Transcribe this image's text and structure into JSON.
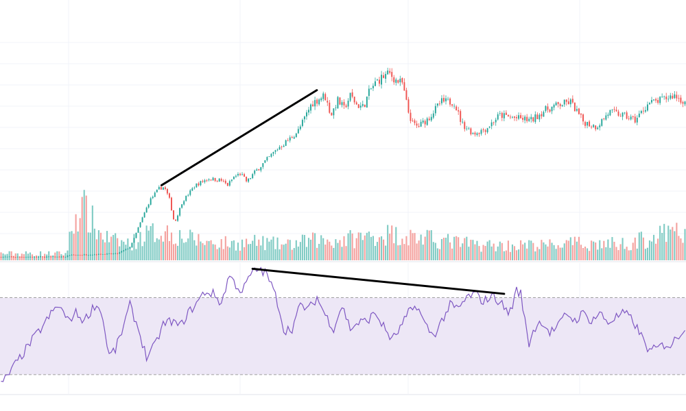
{
  "colors": {
    "up": "#26a69a",
    "down": "#ef5350",
    "volume_up": "#80cbc4",
    "volume_down": "#f4a29f",
    "rsi_line": "#7e57c2",
    "rsi_band": "#ede7f6",
    "rsi_band_border": "#9e9e9e",
    "grid": "#f0f3fa",
    "trendline": "#000000",
    "background": "#ffffff"
  },
  "chart_data": [
    {
      "type": "candlestick",
      "title": "",
      "xlabel": "",
      "ylabel": "",
      "grid": true,
      "axis_labels_visible": false,
      "bar_count": 330,
      "price_anchors": [
        [
          0,
          2
        ],
        [
          50,
          2
        ],
        [
          52,
          3
        ],
        [
          90,
          4
        ],
        [
          100,
          8
        ],
        [
          110,
          27
        ],
        [
          115,
          36
        ],
        [
          122,
          43
        ],
        [
          126,
          44
        ],
        [
          130,
          37
        ],
        [
          134,
          22
        ],
        [
          140,
          35
        ],
        [
          150,
          45
        ],
        [
          160,
          49
        ],
        [
          170,
          48
        ],
        [
          175,
          45
        ],
        [
          180,
          50
        ],
        [
          185,
          52
        ],
        [
          190,
          47
        ],
        [
          195,
          52
        ],
        [
          200,
          56
        ],
        [
          205,
          60
        ],
        [
          210,
          64
        ],
        [
          215,
          68
        ],
        [
          222,
          72
        ],
        [
          230,
          78
        ],
        [
          240,
          94
        ],
        [
          250,
          99
        ],
        [
          255,
          87
        ],
        [
          260,
          96
        ],
        [
          265,
          91
        ],
        [
          270,
          99
        ],
        [
          275,
          93
        ],
        [
          280,
          92
        ],
        [
          285,
          102
        ],
        [
          290,
          107
        ],
        [
          295,
          110
        ],
        [
          300,
          112
        ],
        [
          305,
          108
        ],
        [
          310,
          106
        ],
        [
          315,
          88
        ],
        [
          318,
          82
        ],
        [
          322,
          80
        ],
        [
          330,
          85
        ],
        [
          340,
          95
        ],
        [
          350,
          95
        ],
        [
          356,
          82
        ],
        [
          365,
          76
        ],
        [
          375,
          79
        ],
        [
          385,
          87
        ],
        [
          400,
          85
        ],
        [
          410,
          84
        ],
        [
          420,
          90
        ],
        [
          430,
          93
        ],
        [
          440,
          95
        ],
        [
          450,
          83
        ],
        [
          460,
          80
        ],
        [
          470,
          89
        ],
        [
          480,
          87
        ],
        [
          490,
          84
        ],
        [
          500,
          94
        ],
        [
          510,
          96
        ],
        [
          520,
          99
        ],
        [
          530,
          94
        ]
      ],
      "volume_anchors": [
        [
          0,
          4
        ],
        [
          50,
          4
        ],
        [
          52,
          10
        ],
        [
          56,
          22
        ],
        [
          60,
          32
        ],
        [
          65,
          30
        ],
        [
          70,
          24
        ],
        [
          75,
          17
        ],
        [
          85,
          12
        ],
        [
          100,
          10
        ],
        [
          110,
          15
        ],
        [
          125,
          18
        ],
        [
          140,
          14
        ],
        [
          160,
          11
        ],
        [
          180,
          10
        ],
        [
          200,
          11
        ],
        [
          220,
          9
        ],
        [
          240,
          12
        ],
        [
          260,
          12
        ],
        [
          280,
          14
        ],
        [
          300,
          16
        ],
        [
          320,
          14
        ],
        [
          340,
          12
        ],
        [
          360,
          10
        ],
        [
          380,
          9
        ],
        [
          400,
          9
        ],
        [
          420,
          9
        ],
        [
          440,
          10
        ],
        [
          460,
          10
        ],
        [
          480,
          10
        ],
        [
          500,
          13
        ],
        [
          520,
          17
        ],
        [
          530,
          15
        ]
      ],
      "trendline": {
        "start": {
          "bar": 124,
          "price": 45
        },
        "end": {
          "bar": 244,
          "price": 102
        }
      }
    },
    {
      "type": "line",
      "title": "",
      "xlabel": "",
      "ylabel": "",
      "axis_labels_visible": false,
      "ylim": [
        20,
        88
      ],
      "band": [
        30,
        70
      ],
      "band_style": "dashed",
      "rsi_anchors": [
        [
          0,
          25
        ],
        [
          3,
          29
        ],
        [
          6,
          34
        ],
        [
          10,
          40
        ],
        [
          15,
          48
        ],
        [
          20,
          55
        ],
        [
          25,
          63
        ],
        [
          28,
          66
        ],
        [
          32,
          58
        ],
        [
          36,
          62
        ],
        [
          40,
          58
        ],
        [
          45,
          66
        ],
        [
          48,
          64
        ],
        [
          52,
          40
        ],
        [
          55,
          43
        ],
        [
          58,
          52
        ],
        [
          62,
          66
        ],
        [
          66,
          54
        ],
        [
          70,
          39
        ],
        [
          74,
          45
        ],
        [
          78,
          56
        ],
        [
          82,
          58
        ],
        [
          86,
          55
        ],
        [
          90,
          62
        ],
        [
          94,
          67
        ],
        [
          98,
          73
        ],
        [
          102,
          72
        ],
        [
          106,
          67
        ],
        [
          108,
          75
        ],
        [
          110,
          82
        ],
        [
          112,
          78
        ],
        [
          116,
          73
        ],
        [
          120,
          82
        ],
        [
          124,
          85
        ],
        [
          128,
          82
        ],
        [
          132,
          71
        ],
        [
          134,
          64
        ],
        [
          136,
          53
        ],
        [
          140,
          54
        ],
        [
          144,
          66
        ],
        [
          148,
          64
        ],
        [
          152,
          70
        ],
        [
          156,
          61
        ],
        [
          160,
          54
        ],
        [
          164,
          66
        ],
        [
          168,
          54
        ],
        [
          172,
          57
        ],
        [
          176,
          58
        ],
        [
          180,
          62
        ],
        [
          184,
          55
        ],
        [
          188,
          48
        ],
        [
          192,
          54
        ],
        [
          196,
          62
        ],
        [
          200,
          66
        ],
        [
          204,
          56
        ],
        [
          208,
          50
        ],
        [
          212,
          58
        ],
        [
          216,
          66
        ],
        [
          220,
          64
        ],
        [
          224,
          70
        ],
        [
          228,
          72
        ],
        [
          232,
          68
        ],
        [
          236,
          71
        ],
        [
          240,
          68
        ],
        [
          244,
          62
        ],
        [
          246,
          66
        ],
        [
          248,
          74
        ],
        [
          250,
          72
        ],
        [
          252,
          58
        ],
        [
          254,
          46
        ],
        [
          256,
          53
        ],
        [
          260,
          58
        ],
        [
          264,
          52
        ],
        [
          268,
          55
        ],
        [
          272,
          62
        ],
        [
          276,
          58
        ],
        [
          280,
          62
        ],
        [
          284,
          58
        ],
        [
          288,
          62
        ],
        [
          292,
          57
        ],
        [
          296,
          60
        ],
        [
          300,
          62
        ],
        [
          304,
          58
        ],
        [
          308,
          50
        ],
        [
          312,
          42
        ],
        [
          316,
          44
        ],
        [
          320,
          46
        ],
        [
          322,
          45
        ],
        [
          330,
          56
        ]
      ],
      "divergence_line": {
        "start": {
          "bar": 121,
          "rsi": 85
        },
        "end": {
          "bar": 242,
          "rsi": 72
        }
      }
    }
  ]
}
